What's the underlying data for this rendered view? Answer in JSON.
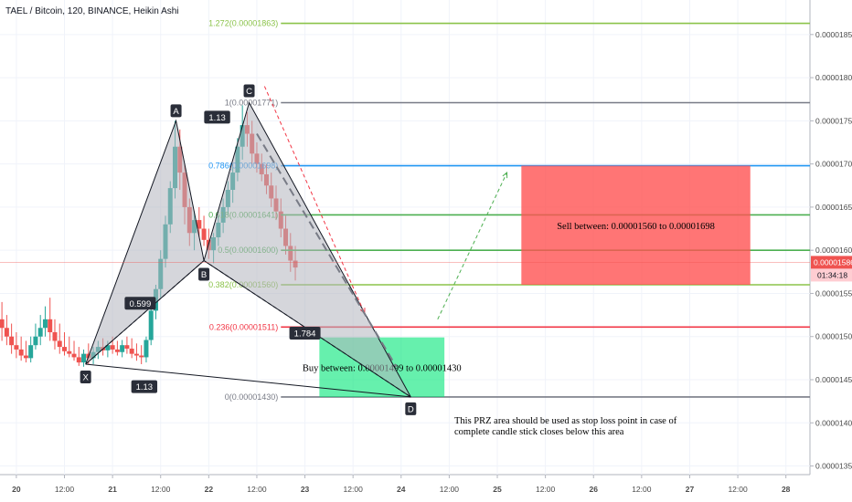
{
  "header": {
    "title": "TAEL / Bitcoin, 120, BINANCE, Heikin Ashi"
  },
  "price_badge": {
    "value": "0.00001586",
    "timer": "01:34:18",
    "color": "#ef5350"
  },
  "chart_data": {
    "type": "candlestick",
    "title": "TAEL / Bitcoin, 120, BINANCE, Heikin Ashi",
    "time_range": [
      19.83,
      28.25
    ],
    "price_range": [
      1.34e-05,
      1.89e-05
    ],
    "x_ticks": [
      {
        "t": 20.0,
        "label": "20"
      },
      {
        "t": 20.5,
        "label": "12:00"
      },
      {
        "t": 21.0,
        "label": "21"
      },
      {
        "t": 21.5,
        "label": "12:00"
      },
      {
        "t": 22.0,
        "label": "22"
      },
      {
        "t": 22.5,
        "label": "12:00"
      },
      {
        "t": 23.0,
        "label": "23"
      },
      {
        "t": 23.5,
        "label": "12:00"
      },
      {
        "t": 24.0,
        "label": "24"
      },
      {
        "t": 24.5,
        "label": "12:00"
      },
      {
        "t": 25.0,
        "label": "25"
      },
      {
        "t": 25.5,
        "label": "12:00"
      },
      {
        "t": 26.0,
        "label": "26"
      },
      {
        "t": 26.5,
        "label": "12:00"
      },
      {
        "t": 27.0,
        "label": "27"
      },
      {
        "t": 27.5,
        "label": "12:00"
      },
      {
        "t": 28.0,
        "label": "28"
      }
    ],
    "y_ticks": [
      {
        "v": 1.85e-05,
        "label": "0.00001850"
      },
      {
        "v": 1.8e-05,
        "label": "0.00001800"
      },
      {
        "v": 1.75e-05,
        "label": "0.00001750"
      },
      {
        "v": 1.7e-05,
        "label": "0.00001700"
      },
      {
        "v": 1.65e-05,
        "label": "0.00001650"
      },
      {
        "v": 1.6e-05,
        "label": "0.00001600"
      },
      {
        "v": 1.55e-05,
        "label": "0.00001550"
      },
      {
        "v": 1.5e-05,
        "label": "0.00001500"
      },
      {
        "v": 1.45e-05,
        "label": "0.00001450"
      },
      {
        "v": 1.4e-05,
        "label": "0.00001400"
      },
      {
        "v": 1.35e-05,
        "label": "0.00001350"
      }
    ],
    "candles": [
      {
        "t": 19.85,
        "o": 1.52e-05,
        "h": 1.54e-05,
        "l": 1.495e-05,
        "c": 1.51e-05
      },
      {
        "t": 19.9,
        "o": 1.51e-05,
        "h": 1.525e-05,
        "l": 1.49e-05,
        "c": 1.5e-05
      },
      {
        "t": 19.95,
        "o": 1.5e-05,
        "h": 1.515e-05,
        "l": 1.48e-05,
        "c": 1.49e-05
      },
      {
        "t": 20.0,
        "o": 1.49e-05,
        "h": 1.505e-05,
        "l": 1.475e-05,
        "c": 1.485e-05
      },
      {
        "t": 20.05,
        "o": 1.485e-05,
        "h": 1.5e-05,
        "l": 1.472e-05,
        "c": 1.478e-05
      },
      {
        "t": 20.1,
        "o": 1.478e-05,
        "h": 1.495e-05,
        "l": 1.47e-05,
        "c": 1.475e-05
      },
      {
        "t": 20.15,
        "o": 1.475e-05,
        "h": 1.5e-05,
        "l": 1.47e-05,
        "c": 1.49e-05
      },
      {
        "t": 20.2,
        "o": 1.49e-05,
        "h": 1.515e-05,
        "l": 1.485e-05,
        "c": 1.5e-05
      },
      {
        "t": 20.25,
        "o": 1.5e-05,
        "h": 1.525e-05,
        "l": 1.49e-05,
        "c": 1.51e-05
      },
      {
        "t": 20.3,
        "o": 1.51e-05,
        "h": 1.535e-05,
        "l": 1.5e-05,
        "c": 1.52e-05
      },
      {
        "t": 20.35,
        "o": 1.52e-05,
        "h": 1.545e-05,
        "l": 1.495e-05,
        "c": 1.505e-05
      },
      {
        "t": 20.4,
        "o": 1.505e-05,
        "h": 1.52e-05,
        "l": 1.485e-05,
        "c": 1.495e-05
      },
      {
        "t": 20.45,
        "o": 1.495e-05,
        "h": 1.515e-05,
        "l": 1.48e-05,
        "c": 1.488e-05
      },
      {
        "t": 20.5,
        "o": 1.488e-05,
        "h": 1.505e-05,
        "l": 1.478e-05,
        "c": 1.483e-05
      },
      {
        "t": 20.55,
        "o": 1.483e-05,
        "h": 1.5e-05,
        "l": 1.476e-05,
        "c": 1.48e-05
      },
      {
        "t": 20.6,
        "o": 1.48e-05,
        "h": 1.495e-05,
        "l": 1.472e-05,
        "c": 1.476e-05
      },
      {
        "t": 20.65,
        "o": 1.476e-05,
        "h": 1.488e-05,
        "l": 1.466e-05,
        "c": 1.47e-05
      },
      {
        "t": 20.7,
        "o": 1.47e-05,
        "h": 1.485e-05,
        "l": 1.465e-05,
        "c": 1.48e-05
      },
      {
        "t": 20.75,
        "o": 1.48e-05,
        "h": 1.492e-05,
        "l": 1.468e-05,
        "c": 1.475e-05
      },
      {
        "t": 20.8,
        "o": 1.475e-05,
        "h": 1.488e-05,
        "l": 1.468e-05,
        "c": 1.482e-05
      },
      {
        "t": 20.85,
        "o": 1.482e-05,
        "h": 1.495e-05,
        "l": 1.474e-05,
        "c": 1.488e-05
      },
      {
        "t": 20.9,
        "o": 1.488e-05,
        "h": 1.498e-05,
        "l": 1.478e-05,
        "c": 1.484e-05
      },
      {
        "t": 20.95,
        "o": 1.484e-05,
        "h": 1.495e-05,
        "l": 1.476e-05,
        "c": 1.49e-05
      },
      {
        "t": 21.0,
        "o": 1.49e-05,
        "h": 1.5e-05,
        "l": 1.48e-05,
        "c": 1.485e-05
      },
      {
        "t": 21.05,
        "o": 1.485e-05,
        "h": 1.495e-05,
        "l": 1.478e-05,
        "c": 1.482e-05
      },
      {
        "t": 21.1,
        "o": 1.482e-05,
        "h": 1.496e-05,
        "l": 1.476e-05,
        "c": 1.49e-05
      },
      {
        "t": 21.15,
        "o": 1.49e-05,
        "h": 1.5e-05,
        "l": 1.48e-05,
        "c": 1.486e-05
      },
      {
        "t": 21.2,
        "o": 1.486e-05,
        "h": 1.498e-05,
        "l": 1.475e-05,
        "c": 1.48e-05
      },
      {
        "t": 21.25,
        "o": 1.48e-05,
        "h": 1.492e-05,
        "l": 1.472e-05,
        "c": 1.478e-05
      },
      {
        "t": 21.3,
        "o": 1.478e-05,
        "h": 1.49e-05,
        "l": 1.468e-05,
        "c": 1.476e-05
      },
      {
        "t": 21.35,
        "o": 1.476e-05,
        "h": 1.5e-05,
        "l": 1.47e-05,
        "c": 1.496e-05
      },
      {
        "t": 21.4,
        "o": 1.496e-05,
        "h": 1.535e-05,
        "l": 1.49e-05,
        "c": 1.53e-05
      },
      {
        "t": 21.45,
        "o": 1.53e-05,
        "h": 1.56e-05,
        "l": 1.52e-05,
        "c": 1.555e-05
      },
      {
        "t": 21.5,
        "o": 1.555e-05,
        "h": 1.6e-05,
        "l": 1.545e-05,
        "c": 1.59e-05
      },
      {
        "t": 21.55,
        "o": 1.59e-05,
        "h": 1.64e-05,
        "l": 1.58e-05,
        "c": 1.63e-05
      },
      {
        "t": 21.6,
        "o": 1.63e-05,
        "h": 1.68e-05,
        "l": 1.62e-05,
        "c": 1.672e-05
      },
      {
        "t": 21.65,
        "o": 1.672e-05,
        "h": 1.75e-05,
        "l": 1.66e-05,
        "c": 1.72e-05
      },
      {
        "t": 21.7,
        "o": 1.72e-05,
        "h": 1.74e-05,
        "l": 1.67e-05,
        "c": 1.69e-05
      },
      {
        "t": 21.75,
        "o": 1.69e-05,
        "h": 1.7e-05,
        "l": 1.63e-05,
        "c": 1.65e-05
      },
      {
        "t": 21.8,
        "o": 1.65e-05,
        "h": 1.66e-05,
        "l": 1.605e-05,
        "c": 1.62e-05
      },
      {
        "t": 21.85,
        "o": 1.62e-05,
        "h": 1.645e-05,
        "l": 1.6e-05,
        "c": 1.635e-05
      },
      {
        "t": 21.9,
        "o": 1.635e-05,
        "h": 1.65e-05,
        "l": 1.615e-05,
        "c": 1.625e-05
      },
      {
        "t": 21.95,
        "o": 1.625e-05,
        "h": 1.64e-05,
        "l": 1.605e-05,
        "c": 1.612e-05
      },
      {
        "t": 22.0,
        "o": 1.612e-05,
        "h": 1.625e-05,
        "l": 1.59e-05,
        "c": 1.6e-05
      },
      {
        "t": 22.05,
        "o": 1.6e-05,
        "h": 1.62e-05,
        "l": 1.585e-05,
        "c": 1.615e-05
      },
      {
        "t": 22.1,
        "o": 1.615e-05,
        "h": 1.64e-05,
        "l": 1.605e-05,
        "c": 1.632e-05
      },
      {
        "t": 22.15,
        "o": 1.632e-05,
        "h": 1.66e-05,
        "l": 1.62e-05,
        "c": 1.65e-05
      },
      {
        "t": 22.2,
        "o": 1.65e-05,
        "h": 1.68e-05,
        "l": 1.64e-05,
        "c": 1.67e-05
      },
      {
        "t": 22.25,
        "o": 1.67e-05,
        "h": 1.7e-05,
        "l": 1.655e-05,
        "c": 1.69e-05
      },
      {
        "t": 22.3,
        "o": 1.69e-05,
        "h": 1.73e-05,
        "l": 1.68e-05,
        "c": 1.72e-05
      },
      {
        "t": 22.35,
        "o": 1.72e-05,
        "h": 1.768e-05,
        "l": 1.705e-05,
        "c": 1.745e-05
      },
      {
        "t": 22.4,
        "o": 1.745e-05,
        "h": 1.76e-05,
        "l": 1.72e-05,
        "c": 1.735e-05
      },
      {
        "t": 22.45,
        "o": 1.735e-05,
        "h": 1.75e-05,
        "l": 1.7e-05,
        "c": 1.712e-05
      },
      {
        "t": 22.5,
        "o": 1.712e-05,
        "h": 1.725e-05,
        "l": 1.69e-05,
        "c": 1.7e-05
      },
      {
        "t": 22.55,
        "o": 1.7e-05,
        "h": 1.712e-05,
        "l": 1.68e-05,
        "c": 1.688e-05
      },
      {
        "t": 22.6,
        "o": 1.688e-05,
        "h": 1.7e-05,
        "l": 1.665e-05,
        "c": 1.675e-05
      },
      {
        "t": 22.65,
        "o": 1.675e-05,
        "h": 1.69e-05,
        "l": 1.65e-05,
        "c": 1.66e-05
      },
      {
        "t": 22.7,
        "o": 1.66e-05,
        "h": 1.675e-05,
        "l": 1.635e-05,
        "c": 1.645e-05
      },
      {
        "t": 22.75,
        "o": 1.645e-05,
        "h": 1.66e-05,
        "l": 1.615e-05,
        "c": 1.625e-05
      },
      {
        "t": 22.8,
        "o": 1.625e-05,
        "h": 1.64e-05,
        "l": 1.595e-05,
        "c": 1.605e-05
      },
      {
        "t": 22.85,
        "o": 1.605e-05,
        "h": 1.62e-05,
        "l": 1.575e-05,
        "c": 1.588e-05
      },
      {
        "t": 22.9,
        "o": 1.588e-05,
        "h": 1.605e-05,
        "l": 1.565e-05,
        "c": 1.58e-05
      }
    ]
  },
  "pattern": {
    "points": [
      "X",
      "A",
      "B",
      "C",
      "D"
    ],
    "ratios": {
      "xa_bc": "0.599",
      "ab": "1.13",
      "bc_cd": "1.784",
      "xd": "1.13"
    }
  },
  "fib_levels": [
    {
      "label": "1.272(0.00001863)",
      "price": 1.863e-05,
      "color": "#8bc34a"
    },
    {
      "label": "1(0.00001771)",
      "price": 1.771e-05,
      "color": "#787b86"
    },
    {
      "label": "0.786(0.00001698)",
      "price": 1.698e-05,
      "color": "#2196f3"
    },
    {
      "label": "0.618(0.00001641)",
      "price": 1.641e-05,
      "color": "#4caf50"
    },
    {
      "label": "0.5(0.00001600)",
      "price": 1.6e-05,
      "color": "#4caf50"
    },
    {
      "label": "0.382(0.00001560)",
      "price": 1.56e-05,
      "color": "#8bc34a"
    },
    {
      "label": "0.236(0.00001511)",
      "price": 1.511e-05,
      "color": "#f23645"
    },
    {
      "label": "0(0.00001430)",
      "price": 1.43e-05,
      "color": "#787b86"
    }
  ],
  "zones": {
    "sell": {
      "text": "Sell between: 0.00001560 to 0.00001698",
      "color": "#ff5252"
    },
    "buy": {
      "text": "Buy between: 0.00001499 to 0.00001430",
      "color": "#00e676"
    }
  },
  "note": {
    "line1": "This PRZ area should be used as stop loss point in case of",
    "line2": "complete candle stick closes below this area"
  },
  "colors": {
    "up": "#26a69a",
    "down": "#ef5350",
    "pattern_fill": "#b2b5be"
  }
}
